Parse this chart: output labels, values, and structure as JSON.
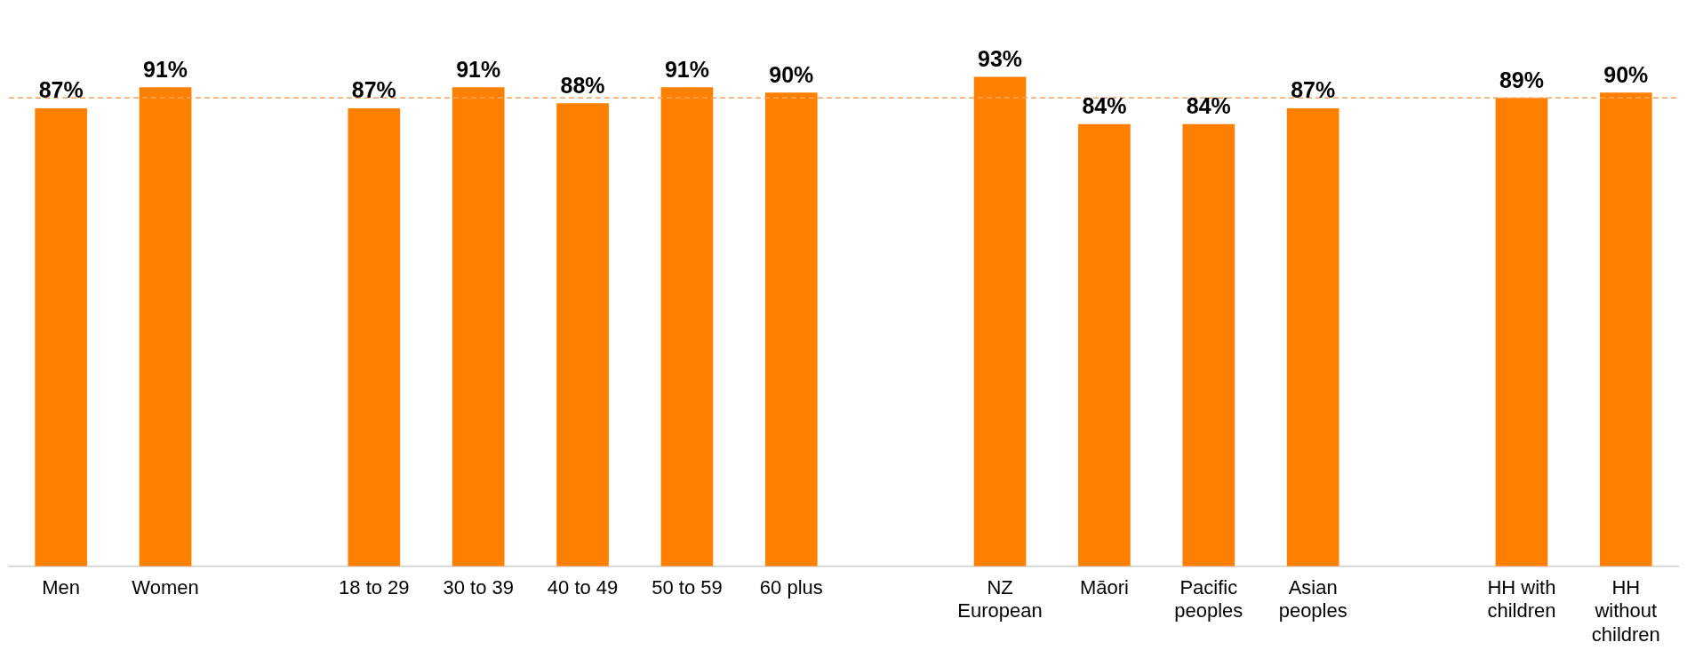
{
  "chart_data": {
    "type": "bar",
    "categories": [
      "Men",
      "Women",
      null,
      "18 to 29",
      "30 to 39",
      "40 to 49",
      "50 to 59",
      "60 plus",
      null,
      "NZ European",
      "Māori",
      "Pacific peoples",
      "Asian peoples",
      null,
      "HH with children",
      "HH without children"
    ],
    "values": [
      87,
      91,
      null,
      87,
      91,
      88,
      91,
      90,
      null,
      93,
      84,
      84,
      87,
      null,
      89,
      90
    ],
    "color": "#ff8000",
    "value_labels": [
      "87%",
      "91%",
      null,
      "87%",
      "91%",
      "88%",
      "91%",
      "90%",
      null,
      "93%",
      "84%",
      "84%",
      "87%",
      null,
      "89%",
      "90%"
    ],
    "tick_labels": "x",
    "grid": false,
    "legend": false,
    "ref_lines": [
      {
        "axis": "y",
        "value": 89,
        "color": "#f4a460",
        "line_style": "dashed"
      }
    ]
  }
}
